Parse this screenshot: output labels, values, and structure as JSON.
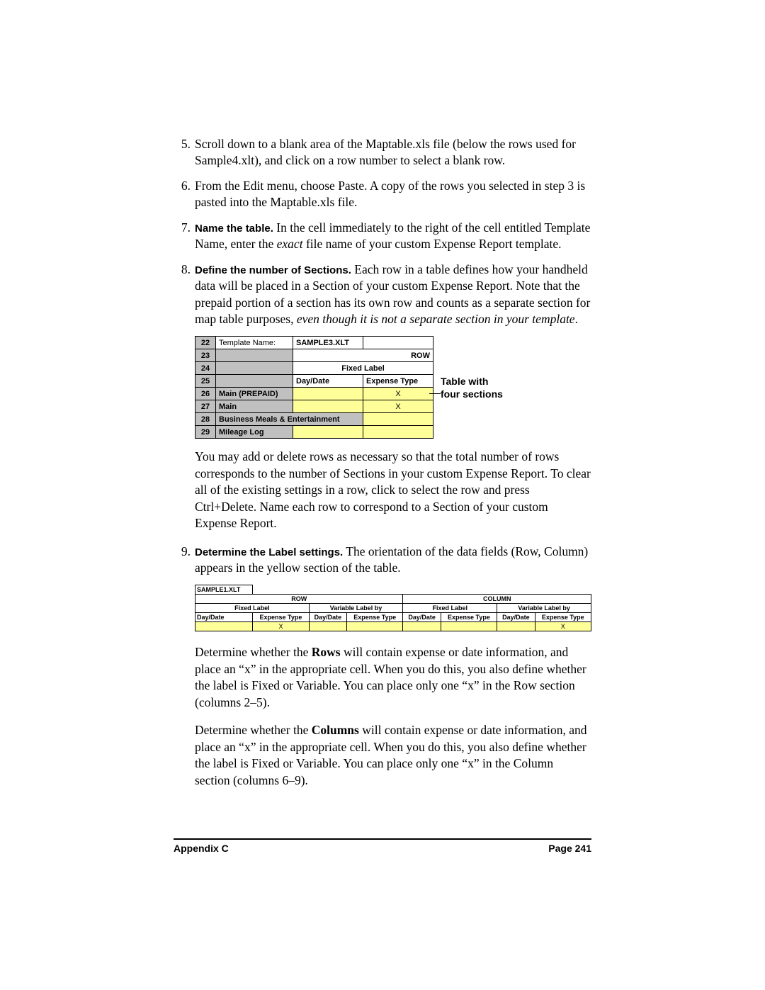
{
  "steps": {
    "s5": {
      "num": "5.",
      "text": "Scroll down to a blank area of the Maptable.xls file (below the rows used for Sample4.xlt), and click on a row number to select a blank row."
    },
    "s6": {
      "num": "6.",
      "text": "From the Edit menu, choose Paste. A copy of the rows you selected in step 3 is pasted into the Maptable.xls file."
    },
    "s7": {
      "num": "7.",
      "lead": "Name the table.",
      "text_a": " In the cell immediately to the right of the cell entitled Template Name, enter the ",
      "em": "exact",
      "text_b": " file name of your custom Expense Report template."
    },
    "s8": {
      "num": "8.",
      "lead": "Define the number of Sections.",
      "text_a": " Each row in a table defines how your handheld data will be placed in a Section of your custom Expense Report. Note that the prepaid portion of a section has its own row and counts as a separate section for map table purposes, ",
      "em": "even though it is not a separate section in your template",
      "text_b": "."
    },
    "s9": {
      "num": "9.",
      "lead": "Determine the Label settings.",
      "text": " The orientation of the data fields (Row, Column) appears in the yellow section of the table."
    }
  },
  "fig1": {
    "r22": {
      "n": "22",
      "label": "Template Name:",
      "val": "SAMPLE3.XLT"
    },
    "r23": {
      "n": "23",
      "row_lbl": "ROW"
    },
    "r24": {
      "n": "24",
      "fixed_lbl": "Fixed Label"
    },
    "r25": {
      "n": "25",
      "c1": "Day/Date",
      "c2": "Expense Type"
    },
    "r26": {
      "n": "26",
      "name": "Main (PREPAID)",
      "x": "X"
    },
    "r27": {
      "n": "27",
      "name": "Main",
      "x": "X"
    },
    "r28": {
      "n": "28",
      "name": "Business Meals & Entertainment"
    },
    "r29": {
      "n": "29",
      "name": "Mileage Log"
    }
  },
  "callout": {
    "l1": "Table with",
    "l2": "four sections"
  },
  "para_after_fig1": "You may add or delete rows as necessary so that the total number of rows corresponds to the number of Sections in your custom Expense Report. To clear all of the existing settings in a row, click to select the row and press Ctrl+Delete. Name each row to correspond to a Section of your custom Expense Report.",
  "fig2": {
    "title": "SAMPLE1.XLT",
    "row_hdr": "ROW",
    "col_hdr": "COLUMN",
    "fixed_label": "Fixed Label",
    "var_label": "Variable Label by",
    "daydate": "Day/Date",
    "exptype": "Expense Type",
    "x": "X"
  },
  "para_rows_a": "Determine whether the ",
  "para_rows_bold": "Rows",
  "para_rows_b": " will contain expense or date information, and place an “x” in the appropriate cell. When you do this, you also define whether the label is Fixed or Variable. You can place only one “x” in the Row section (columns 2–5).",
  "para_cols_a": "Determine whether the ",
  "para_cols_bold": "Columns",
  "para_cols_b": " will contain expense or date information, and place an “x” in the appropriate cell. When you do this, you also define whether the label is Fixed or Variable. You can place only one “x” in the Column section (columns 6–9).",
  "footer": {
    "left": "Appendix C",
    "right": "Page 241"
  }
}
